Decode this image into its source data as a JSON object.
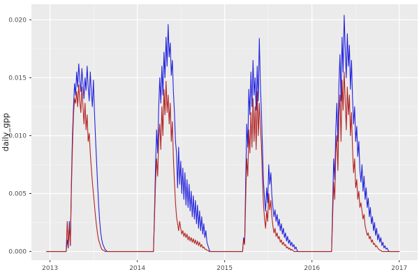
{
  "chart_data": {
    "type": "line",
    "title": "",
    "xlabel": "",
    "ylabel": "daily_gpp",
    "xlim": [
      2012.787,
      2017.21
    ],
    "ylim": [
      -0.00075,
      0.02135
    ],
    "grid": "on",
    "legend": "none",
    "panel_bg": "#EBEBEB",
    "grid_major_color": "#FFFFFF",
    "grid_minor_color": "#FFFFFF",
    "tick_label_color": "#4D4D4D",
    "axis_title_color": "#1A1A1A",
    "tick_mark_color": "#333333",
    "x_ticks": {
      "values": [
        2013,
        2014,
        2015,
        2016,
        2017
      ],
      "labels": [
        "2013",
        "2014",
        "2015",
        "2016",
        "2017"
      ]
    },
    "y_ticks": {
      "values": [
        0,
        0.005,
        0.01,
        0.015,
        0.02
      ],
      "labels": [
        "0.000",
        "0.005",
        "0.010",
        "0.015",
        "0.020"
      ]
    },
    "x_minor": [
      2013.5,
      2014.5,
      2015.5,
      2016.5
    ],
    "y_minor": [
      0.0025,
      0.0075,
      0.0125,
      0.0175
    ],
    "series": [
      {
        "name": "gpp-series-blue",
        "key": "blue",
        "color": "#2222DD",
        "z": 1
      },
      {
        "name": "gpp-series-red",
        "key": "red",
        "color": "#B22222",
        "z": 2
      }
    ],
    "segments": [
      {
        "t0": 2012.96,
        "dt": 0.012,
        "blue": [
          0
        ],
        "red": [
          0
        ]
      },
      {
        "t0": 2013.185,
        "dt": 0.012,
        "blue": [
          0,
          0.001,
          0.0003,
          0.0026,
          0.0005,
          0.006,
          0.01,
          0.0125,
          0.0145,
          0.0135,
          0.0155,
          0.0142,
          0.0162,
          0.0148,
          0.0138,
          0.0158,
          0.0145,
          0.0132,
          0.015,
          0.0139,
          0.016,
          0.0142,
          0.013,
          0.0155,
          0.0138,
          0.0125,
          0.0148,
          0.012,
          0.0098,
          0.0078,
          0.0058,
          0.004,
          0.0026,
          0.0016,
          0.001,
          0.0006,
          0.0004,
          0.0002,
          0.0001,
          0
        ],
        "red": [
          0,
          0.0026,
          0.0004,
          0.0022,
          0.0006,
          0.0055,
          0.009,
          0.0118,
          0.0132,
          0.0128,
          0.0138,
          0.0125,
          0.0144,
          0.013,
          0.012,
          0.0142,
          0.0126,
          0.011,
          0.0128,
          0.0105,
          0.0118,
          0.0095,
          0.0102,
          0.0085,
          0.0072,
          0.006,
          0.005,
          0.004,
          0.003,
          0.0022,
          0.0015,
          0.001,
          0.0007,
          0.0004,
          0.0002,
          0.0001,
          0.0001,
          0,
          0,
          0
        ]
      },
      {
        "t0": 2014.185,
        "dt": 0.012,
        "blue": [
          0,
          0.0035,
          0.0075,
          0.0105,
          0.0085,
          0.0125,
          0.015,
          0.0128,
          0.016,
          0.0135,
          0.0172,
          0.015,
          0.0185,
          0.016,
          0.0196,
          0.0168,
          0.018,
          0.0152,
          0.0165,
          0.0138,
          0.012,
          0.0095,
          0.0085,
          0.0055,
          0.009,
          0.0058,
          0.0078,
          0.005,
          0.0072,
          0.0045,
          0.0068,
          0.004,
          0.0062,
          0.0038,
          0.0058,
          0.0035,
          0.0052,
          0.003,
          0.0048,
          0.0028,
          0.0044,
          0.0024,
          0.004,
          0.002,
          0.0035,
          0.0018,
          0.003,
          0.0015,
          0.0024,
          0.0012,
          0.0018,
          0.0008,
          0.0005,
          0.0002,
          0
        ],
        "red": [
          0,
          0.003,
          0.006,
          0.008,
          0.0065,
          0.0098,
          0.011,
          0.0088,
          0.0125,
          0.01,
          0.014,
          0.0118,
          0.0147,
          0.012,
          0.0135,
          0.011,
          0.0128,
          0.0095,
          0.0112,
          0.008,
          0.006,
          0.0042,
          0.003,
          0.0024,
          0.0018,
          0.0026,
          0.002,
          0.0015,
          0.0018,
          0.0013,
          0.0016,
          0.0012,
          0.0015,
          0.001,
          0.0013,
          0.0009,
          0.0012,
          0.0008,
          0.0011,
          0.0007,
          0.001,
          0.0006,
          0.0009,
          0.0005,
          0.0008,
          0.0004,
          0.0006,
          0.0003,
          0.0004,
          0.0002,
          0.0002,
          0.0001,
          0.0001,
          0,
          0
        ]
      },
      {
        "t0": 2015.205,
        "dt": 0.012,
        "blue": [
          0,
          0.0012,
          0.0008,
          0.006,
          0.011,
          0.009,
          0.014,
          0.0118,
          0.0155,
          0.0125,
          0.0165,
          0.0135,
          0.015,
          0.0122,
          0.016,
          0.013,
          0.0184,
          0.0145,
          0.012,
          0.009,
          0.006,
          0.0045,
          0.0035,
          0.0055,
          0.0042,
          0.0075,
          0.0058,
          0.0068,
          0.0048,
          0.0038,
          0.003,
          0.0036,
          0.0026,
          0.0032,
          0.0022,
          0.0028,
          0.0018,
          0.0024,
          0.0015,
          0.002,
          0.0012,
          0.0016,
          0.0009,
          0.0013,
          0.0007,
          0.001,
          0.0005,
          0.0008,
          0.0004,
          0.0006,
          0.0002,
          0.0004,
          0.0001,
          0
        ],
        "red": [
          0,
          0.001,
          0.0006,
          0.0045,
          0.008,
          0.0065,
          0.0105,
          0.0085,
          0.012,
          0.009,
          0.0132,
          0.0095,
          0.0125,
          0.0088,
          0.0138,
          0.01,
          0.0128,
          0.0108,
          0.0092,
          0.0062,
          0.004,
          0.0028,
          0.002,
          0.0035,
          0.0026,
          0.005,
          0.0036,
          0.0044,
          0.003,
          0.0022,
          0.0016,
          0.002,
          0.0013,
          0.0016,
          0.0011,
          0.0013,
          0.0008,
          0.001,
          0.0006,
          0.0008,
          0.0005,
          0.0006,
          0.0003,
          0.0004,
          0.0002,
          0.0003,
          0.0001,
          0.0002,
          0.0001,
          0,
          0,
          0,
          0,
          0
        ]
      },
      {
        "t0": 2016.225,
        "dt": 0.012,
        "blue": [
          0,
          0.004,
          0.008,
          0.0062,
          0.0105,
          0.0128,
          0.0095,
          0.0145,
          0.017,
          0.013,
          0.0185,
          0.0155,
          0.0204,
          0.0175,
          0.015,
          0.0188,
          0.016,
          0.0178,
          0.014,
          0.0165,
          0.0132,
          0.011,
          0.0125,
          0.0095,
          0.0108,
          0.0082,
          0.0095,
          0.007,
          0.006,
          0.0075,
          0.0052,
          0.0065,
          0.0045,
          0.0055,
          0.0038,
          0.0046,
          0.003,
          0.0038,
          0.0024,
          0.003,
          0.0018,
          0.0025,
          0.0014,
          0.002,
          0.001,
          0.0015,
          0.0008,
          0.0012,
          0.0005,
          0.0008,
          0.0003,
          0.0005,
          0.0002,
          0.0003,
          0.0001,
          0
        ],
        "red": [
          0,
          0.003,
          0.006,
          0.0045,
          0.0085,
          0.01,
          0.007,
          0.0118,
          0.0135,
          0.0095,
          0.0148,
          0.0122,
          0.0155,
          0.013,
          0.0105,
          0.0142,
          0.0118,
          0.0135,
          0.01,
          0.012,
          0.0088,
          0.0068,
          0.008,
          0.0055,
          0.0062,
          0.0045,
          0.0052,
          0.0038,
          0.0042,
          0.0035,
          0.0028,
          0.0032,
          0.0022,
          0.0018,
          0.0014,
          0.0016,
          0.0011,
          0.0013,
          0.0008,
          0.001,
          0.0006,
          0.0007,
          0.0004,
          0.0005,
          0.0003,
          0.0002,
          0.0001,
          0.0001,
          0,
          0,
          0,
          0,
          0,
          0,
          0,
          0
        ]
      },
      {
        "t0": 2017.0,
        "dt": 0.012,
        "blue": [
          0
        ],
        "red": [
          0
        ]
      }
    ]
  }
}
